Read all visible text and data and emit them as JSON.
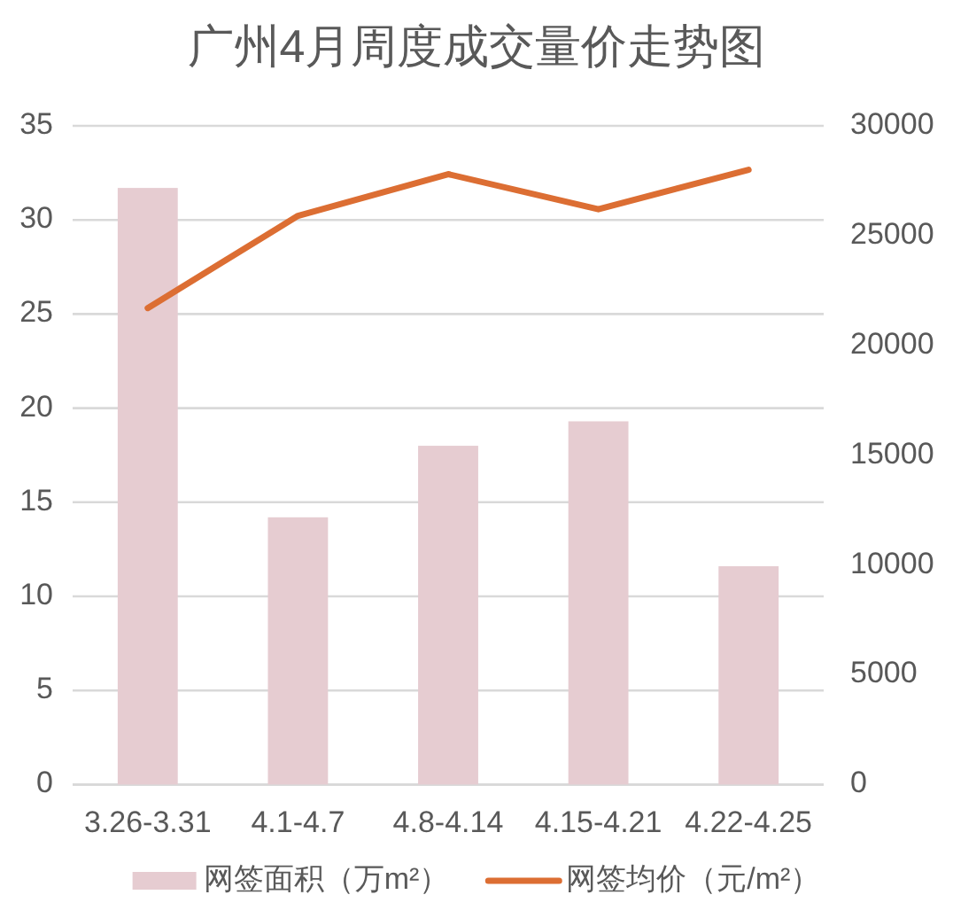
{
  "chart_data": {
    "type": "bar",
    "title": "广州4月周度成交量价走势图",
    "categories": [
      "3.26-3.31",
      "4.1-4.7",
      "4.8-4.14",
      "4.15-4.21",
      "4.22-4.25"
    ],
    "series": [
      {
        "name": "网签面积（万m²）",
        "color": "#e6ccd1",
        "values": [
          31.7,
          14.2,
          18.0,
          19.3,
          11.6
        ]
      },
      {
        "name": "网签均价（元/m²）",
        "type": "line",
        "axis": "y2",
        "color": "#dc6e33",
        "values": [
          21700,
          25900,
          27800,
          26200,
          28000
        ]
      }
    ],
    "ylim": [
      0,
      35
    ],
    "yticks": [
      0,
      5,
      10,
      15,
      20,
      25,
      30,
      35
    ],
    "y2lim": [
      0,
      30000
    ],
    "y2ticks": [
      0,
      5000,
      10000,
      15000,
      20000,
      25000,
      30000
    ],
    "grid": "y",
    "legend": "bottom"
  }
}
